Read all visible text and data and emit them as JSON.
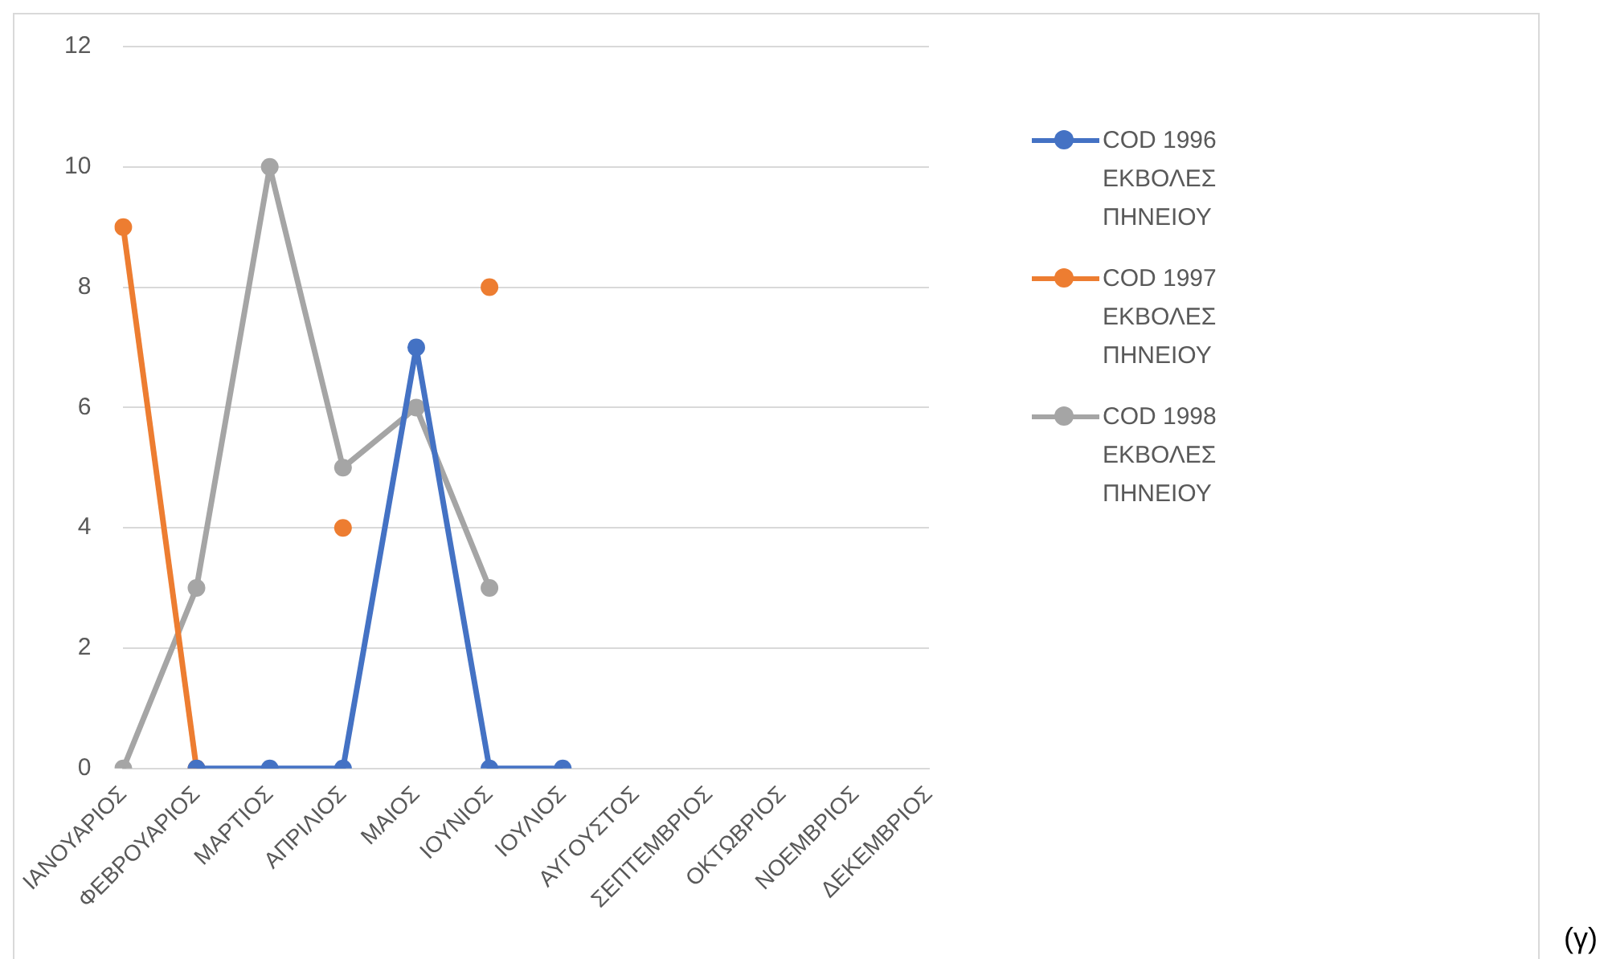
{
  "chart_data": {
    "type": "line",
    "categories": [
      "ΙΑΝΟΥΑΡΙΟΣ",
      "ΦΕΒΡΟΥΑΡΙΟΣ",
      "ΜΑΡΤΙΟΣ",
      "ΑΠΡΙΛΙΟΣ",
      "ΜΑΙΟΣ",
      "ΙΟΥΝΙΟΣ",
      "ΙΟΥΛΙΟΣ",
      "ΑΥΓΟΥΣΤΟΣ",
      "ΣΕΠΤΕΜΒΡΙΟΣ",
      "ΟΚΤΩΒΡΙΟΣ",
      "ΝΟΕΜΒΡΙΟΣ",
      "ΔΕΚΕΜΒΡΙΟΣ"
    ],
    "series": [
      {
        "name": "COD 1996 ΕΚΒΟΛΕΣ ΠΗΝΕΙΟΥ",
        "color": "#4472c4",
        "values": [
          null,
          0,
          0,
          0,
          7,
          0,
          0,
          null,
          null,
          null,
          null,
          null
        ]
      },
      {
        "name": "COD 1997 ΕΚΒΟΛΕΣ ΠΗΝΕΙΟΥ",
        "color": "#ed7d31",
        "values": [
          9,
          0,
          null,
          4,
          null,
          8,
          null,
          null,
          null,
          null,
          null,
          null
        ]
      },
      {
        "name": "COD 1998 ΕΚΒΟΛΕΣ ΠΗΝΕΙΟΥ",
        "color": "#a5a5a5",
        "values": [
          0,
          3,
          10,
          5,
          6,
          3,
          null,
          null,
          null,
          null,
          null,
          null
        ]
      }
    ],
    "ylim": [
      0,
      12
    ],
    "yticks": [
      0,
      2,
      4,
      6,
      8,
      10,
      12
    ],
    "grid": "y",
    "legend": "right",
    "marker": "circle",
    "line_style": "solid",
    "annotations": [
      "(γ)"
    ]
  }
}
